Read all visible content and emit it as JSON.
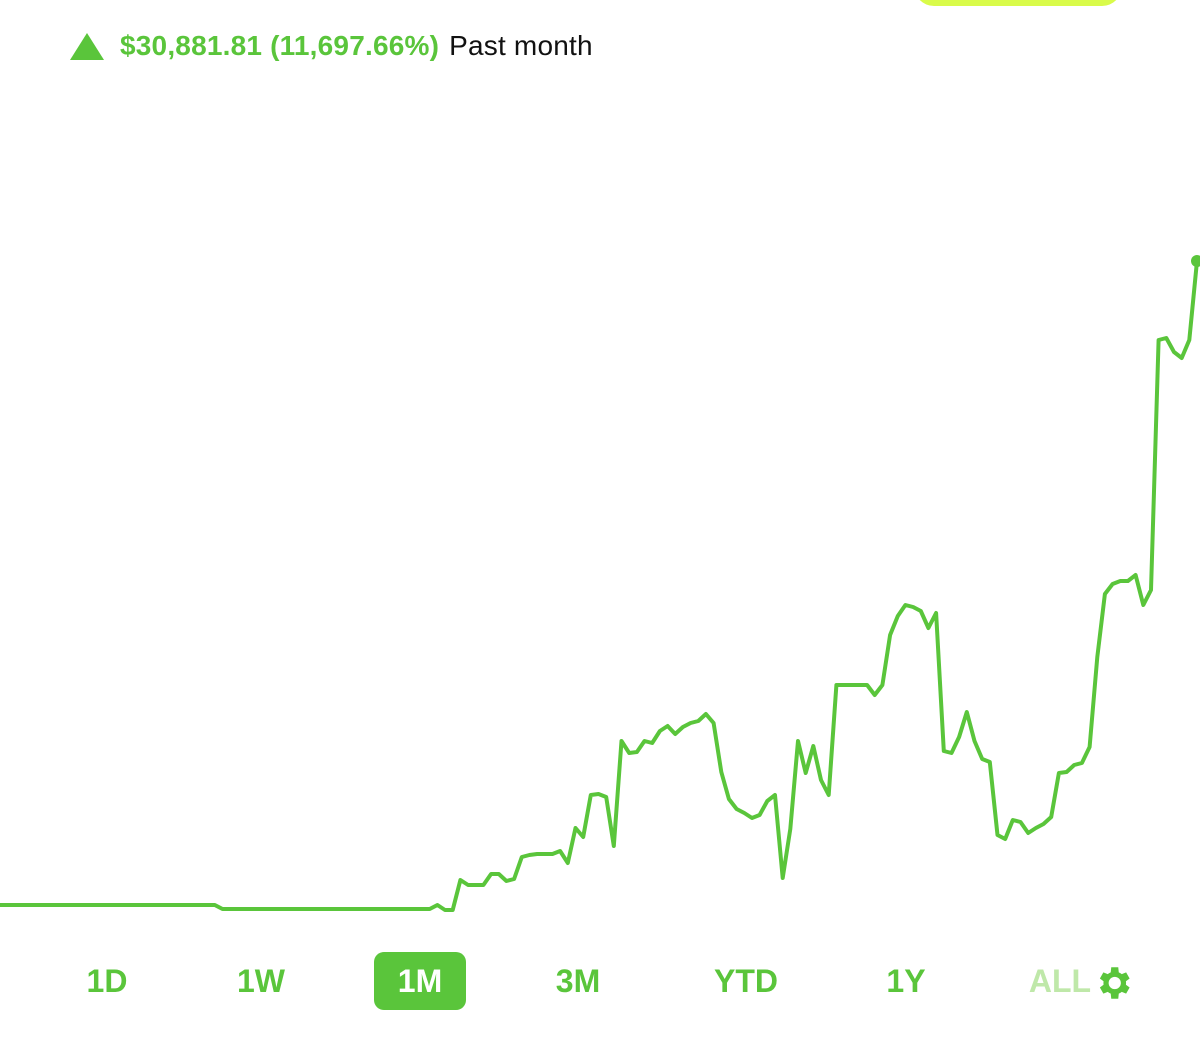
{
  "header": {
    "change_value": "$30,881.81",
    "change_percent": "(11,697.66%)",
    "period_label": "Past month",
    "direction_icon": "triangle-up-icon"
  },
  "colors": {
    "accent": "#5ac53b",
    "top_pill": "#d9fb4a",
    "background": "#ffffff"
  },
  "chart_data": {
    "type": "line",
    "title": "",
    "xlabel": "",
    "ylabel": "",
    "grid": false,
    "series": [
      {
        "values": [
          0,
          0,
          0,
          0,
          0,
          0,
          0,
          0,
          0,
          0,
          0,
          0,
          0,
          0,
          0,
          0,
          0,
          0,
          0,
          0,
          0,
          0,
          0,
          0,
          0,
          0,
          0,
          0,
          0,
          -0.4,
          -0.4,
          -0.4,
          -0.4,
          -0.4,
          -0.4,
          -0.4,
          -0.4,
          -0.4,
          -0.4,
          -0.4,
          -0.4,
          -0.4,
          -0.4,
          -0.4,
          -0.4,
          -0.4,
          -0.4,
          -0.4,
          -0.4,
          -0.4,
          -0.4,
          -0.4,
          -0.4,
          -0.4,
          -0.4,
          -0.4,
          -0.4,
          0,
          -0.5,
          -0.5,
          2.5,
          2.0,
          2.0,
          2.0,
          3.1,
          3.1,
          2.4,
          2.6,
          4.8,
          5.0,
          5.1,
          5.1,
          5.1,
          5.4,
          4.2,
          7.7,
          6.8,
          11.0,
          11.1,
          10.8,
          5.9,
          16.4,
          15.2,
          15.3,
          16.4,
          16.2,
          17.4,
          17.9,
          17.1,
          17.8,
          18.2,
          18.4,
          19.1,
          18.2,
          13.3,
          10.6,
          9.6,
          9.2,
          8.7,
          9.0,
          10.4,
          11.0,
          2.7,
          7.6,
          16.4,
          13.2,
          15.9,
          12.5,
          11.0,
          22.0,
          22.0,
          22.0,
          22.0,
          22.0,
          21.0,
          22.0,
          27.0,
          28.9,
          30.0,
          29.8,
          29.4,
          27.7,
          29.2,
          15.4,
          15.2,
          16.8,
          19.3,
          16.4,
          14.6,
          14.3,
          7.0,
          6.6,
          8.5,
          8.3,
          7.2,
          7.7,
          8.1,
          8.8,
          13.2,
          13.3,
          14.0,
          14.2,
          15.8,
          24.8,
          31.1,
          32.1,
          32.4,
          32.4,
          33.0,
          30.0,
          31.5,
          56.5,
          56.7,
          55.3,
          54.7,
          56.5,
          64.4
        ]
      }
    ],
    "ranges": [
      "1D",
      "1W",
      "1M",
      "3M",
      "YTD",
      "1Y",
      "ALL"
    ],
    "selected_range": "1M"
  },
  "settings_icon": "gear-icon"
}
